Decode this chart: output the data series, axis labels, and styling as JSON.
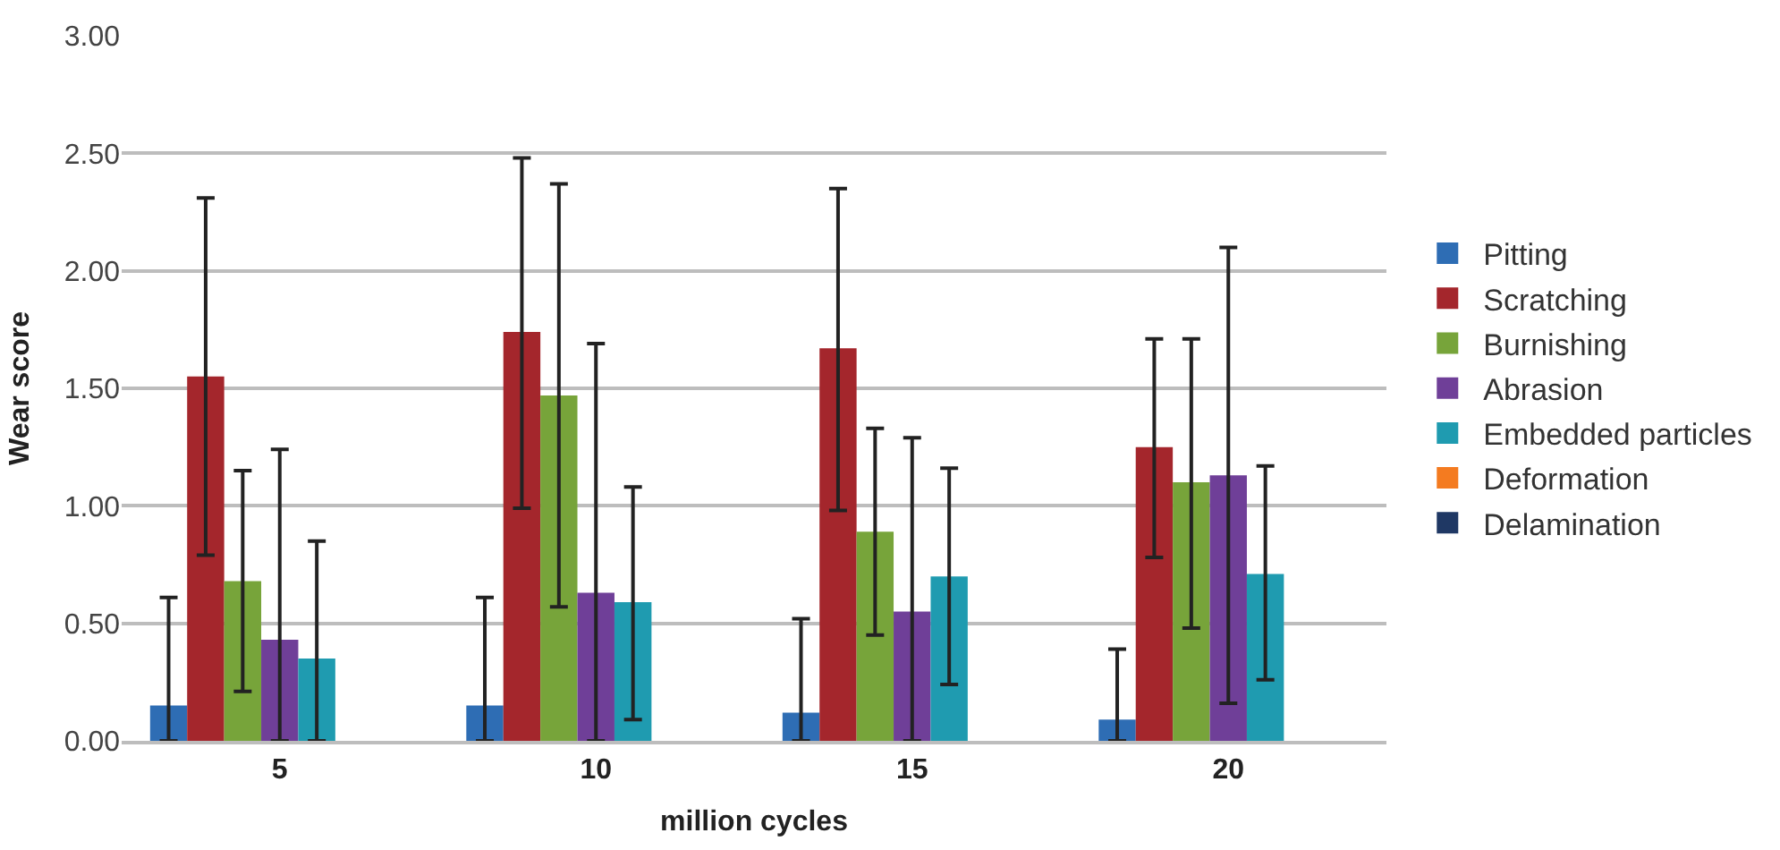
{
  "chart_data": {
    "type": "bar",
    "xlabel": "million cycles",
    "ylabel": "Wear score",
    "categories": [
      "5",
      "10",
      "15",
      "20"
    ],
    "series": [
      {
        "name": "Pitting",
        "color": "#2e6db4",
        "values": [
          0.15,
          0.15,
          0.12,
          0.09
        ],
        "errors": [
          [
            0,
            0.61
          ],
          [
            0,
            0.61
          ],
          [
            0,
            0.52
          ],
          [
            0,
            0.39
          ]
        ]
      },
      {
        "name": "Scratching",
        "color": "#a4262c",
        "values": [
          1.55,
          1.74,
          1.67,
          1.25
        ],
        "errors": [
          [
            0.79,
            2.31
          ],
          [
            0.99,
            2.48
          ],
          [
            0.98,
            2.35
          ],
          [
            0.78,
            1.71
          ]
        ]
      },
      {
        "name": "Burnishing",
        "color": "#77a43a",
        "values": [
          0.68,
          1.47,
          0.89,
          1.1
        ],
        "errors": [
          [
            0.21,
            1.15
          ],
          [
            0.57,
            2.37
          ],
          [
            0.45,
            1.33
          ],
          [
            0.48,
            1.71
          ]
        ]
      },
      {
        "name": "Abrasion",
        "color": "#6f3f98",
        "values": [
          0.43,
          0.63,
          0.55,
          1.13
        ],
        "errors": [
          [
            0,
            1.24
          ],
          [
            0,
            1.69
          ],
          [
            0,
            1.29
          ],
          [
            0.16,
            2.1
          ]
        ]
      },
      {
        "name": "Embedded particles",
        "color": "#1f9bb0",
        "values": [
          0.35,
          0.59,
          0.7,
          0.71
        ],
        "errors": [
          [
            0,
            0.85
          ],
          [
            0.09,
            1.08
          ],
          [
            0.24,
            1.16
          ],
          [
            0.26,
            1.17
          ]
        ]
      },
      {
        "name": "Deformation",
        "color": "#f47b20",
        "values": [
          0,
          0,
          0,
          0
        ]
      },
      {
        "name": "Delamination",
        "color": "#1f3864",
        "values": [
          0,
          0,
          0,
          0
        ]
      }
    ],
    "ylim": [
      0,
      3
    ],
    "yticks": [
      {
        "value": 0,
        "label": "0.00"
      },
      {
        "value": 0.5,
        "label": "0.50"
      },
      {
        "value": 1,
        "label": "1.00"
      },
      {
        "value": 1.5,
        "label": "1.50"
      },
      {
        "value": 2,
        "label": "2.00"
      },
      {
        "value": 2.5,
        "label": "2.50"
      },
      {
        "value": 3,
        "label": "3.00"
      }
    ],
    "grid": "y",
    "legend": "right"
  }
}
